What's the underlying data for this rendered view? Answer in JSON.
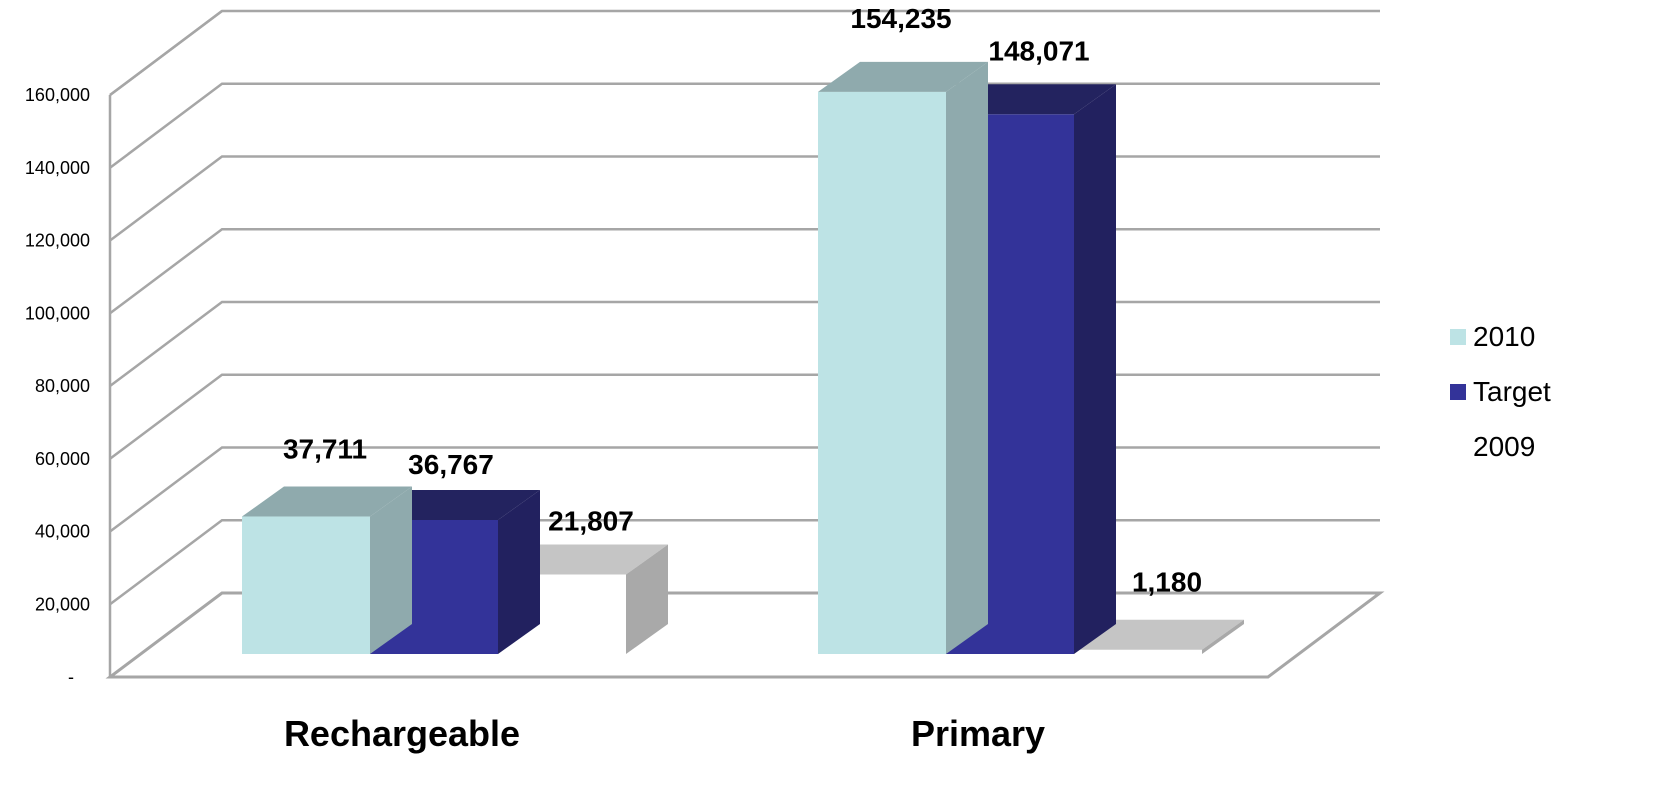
{
  "chart_data": {
    "type": "bar",
    "categories": [
      "Rechargeable",
      "Primary"
    ],
    "series": [
      {
        "name": "2010",
        "values": [
          37711,
          154235
        ],
        "labels": [
          "37,711",
          "154,235"
        ],
        "color": "#BDE3E5",
        "top_color": "#8FAAAD",
        "side_color": "#8FAAAD"
      },
      {
        "name": "Target",
        "values": [
          36767,
          148071
        ],
        "labels": [
          "36,767",
          "148,071"
        ],
        "color": "#333399",
        "top_color": "#23235F",
        "side_color": "#22215F"
      },
      {
        "name": "2009",
        "values": [
          21807,
          1180
        ],
        "labels": [
          "21,807",
          "1,180"
        ],
        "color": "#FFFFFF",
        "top_color": "#C5C5C5",
        "side_color": "#A9A9A9"
      }
    ],
    "y_ticks": [
      {
        "value": 0,
        "label": "-"
      },
      {
        "value": 20000,
        "label": "20,000"
      },
      {
        "value": 40000,
        "label": "40,000"
      },
      {
        "value": 60000,
        "label": "60,000"
      },
      {
        "value": 80000,
        "label": "80,000"
      },
      {
        "value": 100000,
        "label": "100,000"
      },
      {
        "value": 120000,
        "label": "120,000"
      },
      {
        "value": 140000,
        "label": "140,000"
      },
      {
        "value": 160000,
        "label": "160,000"
      }
    ],
    "ylim": [
      0,
      160000
    ],
    "grid": true,
    "legend": "right",
    "three_d": true,
    "gridline_color": "#A6A6A6"
  }
}
